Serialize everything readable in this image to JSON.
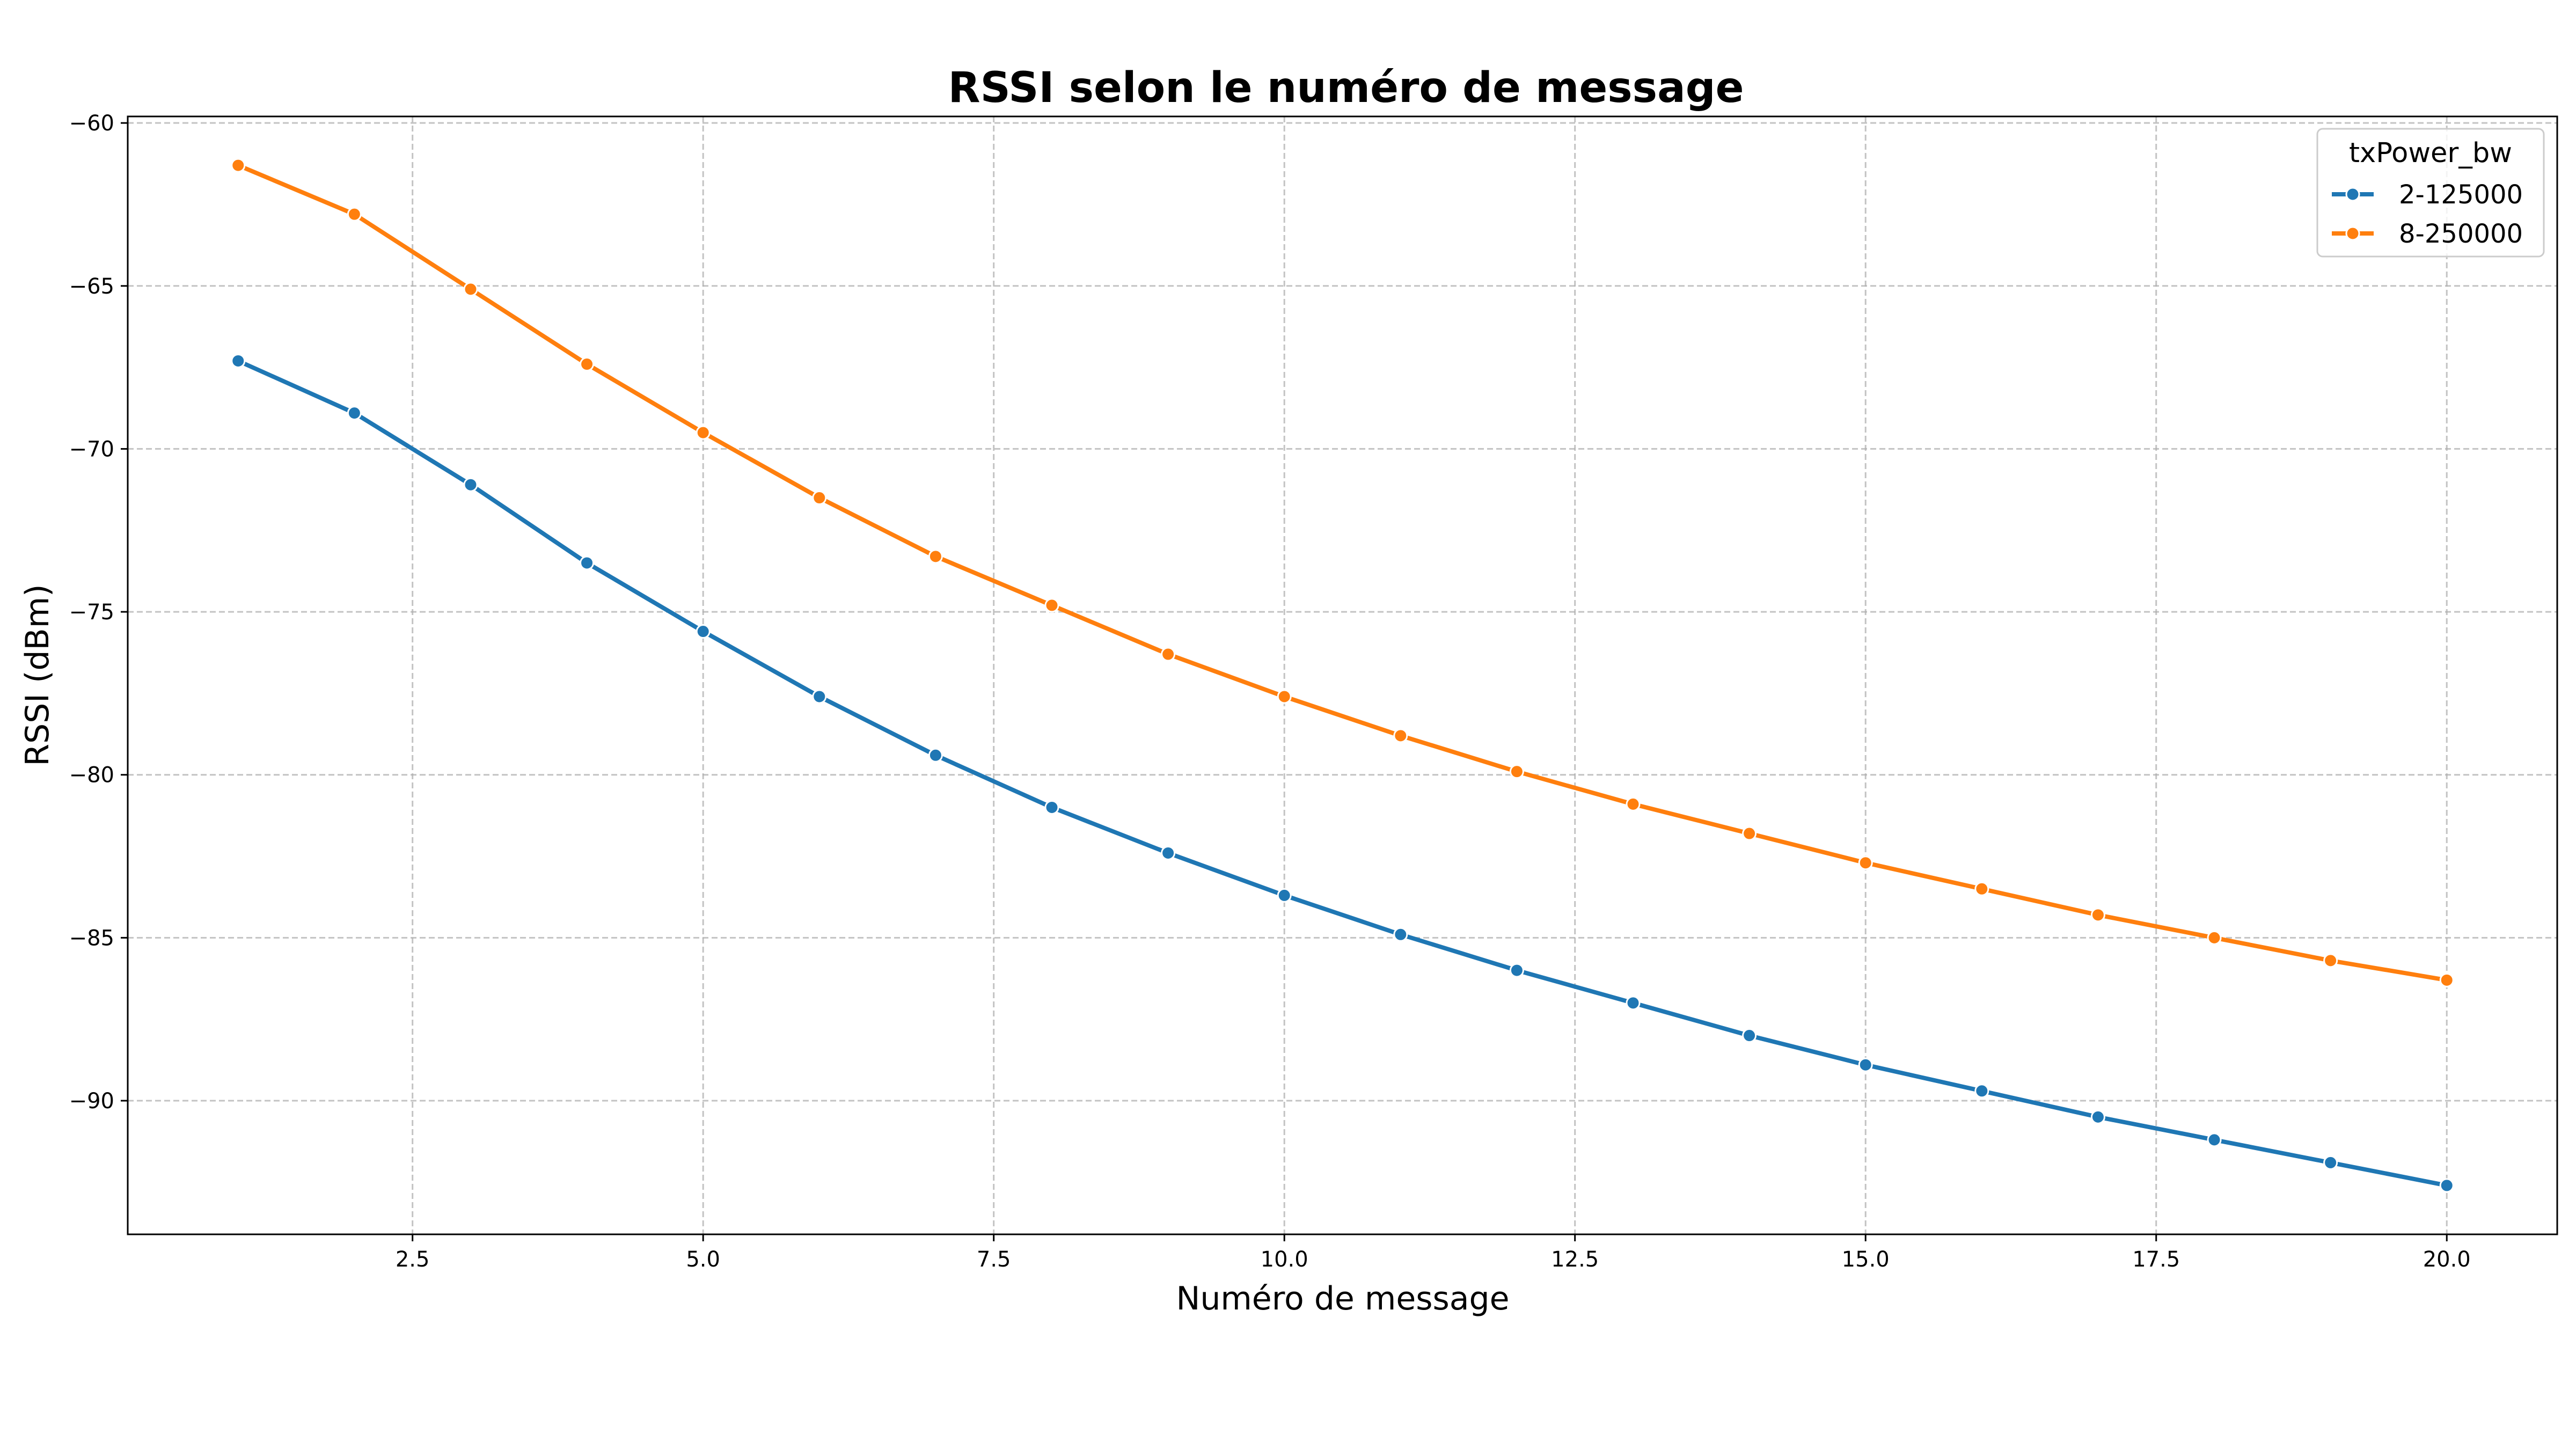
{
  "chart_data": {
    "type": "line",
    "title": "RSSI selon le numéro de message",
    "xlabel": "Numéro de message",
    "ylabel": "RSSI (dBm)",
    "xlim": [
      0.05,
      20.95
    ],
    "ylim": [
      -94.1,
      -59.8
    ],
    "x_ticks": [
      2.5,
      5.0,
      7.5,
      10.0,
      12.5,
      15.0,
      17.5,
      20.0
    ],
    "x_tick_labels": [
      "2.5",
      "5.0",
      "7.5",
      "10.0",
      "12.5",
      "15.0",
      "17.5",
      "20.0"
    ],
    "y_ticks": [
      -60,
      -65,
      -70,
      -75,
      -80,
      -85,
      -90
    ],
    "y_tick_labels": [
      "−60",
      "−65",
      "−70",
      "−75",
      "−80",
      "−85",
      "−90"
    ],
    "grid": true,
    "legend": {
      "title": "txPower_bw",
      "placement": "top-right"
    },
    "x": [
      1,
      2,
      3,
      4,
      5,
      6,
      7,
      8,
      9,
      10,
      11,
      12,
      13,
      14,
      15,
      16,
      17,
      18,
      19,
      20
    ],
    "series": [
      {
        "name": "2-125000",
        "color": "#1f77b4",
        "values": [
          -67.3,
          -68.9,
          -71.1,
          -73.5,
          -75.6,
          -77.6,
          -79.4,
          -81.0,
          -82.4,
          -83.7,
          -84.9,
          -86.0,
          -87.0,
          -88.0,
          -88.9,
          -89.7,
          -90.5,
          -91.2,
          -91.9,
          -92.6
        ]
      },
      {
        "name": "8-250000",
        "color": "#ff7f0e",
        "values": [
          -61.3,
          -62.8,
          -65.1,
          -67.4,
          -69.5,
          -71.5,
          -73.3,
          -74.8,
          -76.3,
          -77.6,
          -78.8,
          -79.9,
          -80.9,
          -81.8,
          -82.7,
          -83.5,
          -84.3,
          -85.0,
          -85.7,
          -86.3
        ]
      }
    ]
  }
}
